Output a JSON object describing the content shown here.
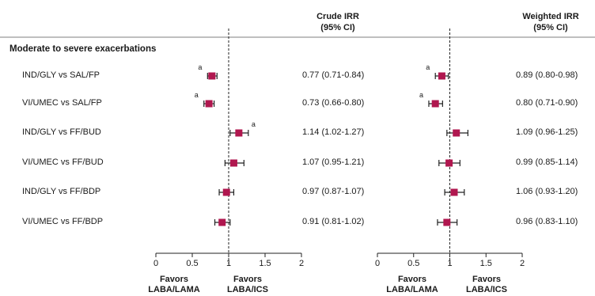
{
  "headers": {
    "crude": [
      "Crude IRR",
      "(95% CI)"
    ],
    "weighted": [
      "Weighted IRR",
      "(95% CI)"
    ]
  },
  "section_label": "Moderate to severe exacerbations",
  "favors": {
    "left": [
      "Favors",
      "LABA/LAMA"
    ],
    "right": [
      "Favors",
      "LABA/ICS"
    ]
  },
  "colors": {
    "marker": "#b0174f",
    "line": "#222222"
  },
  "chart_data": [
    {
      "type": "forest",
      "name": "crude",
      "xlim": [
        0,
        2
      ],
      "ticks": [
        "0",
        "0.5",
        "1",
        "1.5",
        "2"
      ],
      "tick_values": [
        0,
        0.5,
        1,
        1.5,
        2
      ],
      "reference_line": 1,
      "rows": [
        {
          "label": "IND/GLY vs SAL/FP",
          "est": 0.77,
          "lo": 0.71,
          "hi": 0.84,
          "text": "0.77 (0.71-0.84)",
          "note": "a"
        },
        {
          "label": "VI/UMEC vs SAL/FP",
          "est": 0.73,
          "lo": 0.66,
          "hi": 0.8,
          "text": "0.73 (0.66-0.80)",
          "note": "a"
        },
        {
          "label": "IND/GLY vs FF/BUD",
          "est": 1.14,
          "lo": 1.02,
          "hi": 1.27,
          "text": "1.14 (1.02-1.27)",
          "note": "a"
        },
        {
          "label": "VI/UMEC vs FF/BUD",
          "est": 1.07,
          "lo": 0.95,
          "hi": 1.21,
          "text": "1.07 (0.95-1.21)",
          "note": ""
        },
        {
          "label": "IND/GLY vs FF/BDP",
          "est": 0.97,
          "lo": 0.87,
          "hi": 1.07,
          "text": "0.97 (0.87-1.07)",
          "note": ""
        },
        {
          "label": "VI/UMEC vs FF/BDP",
          "est": 0.91,
          "lo": 0.81,
          "hi": 1.02,
          "text": "0.91 (0.81-1.02)",
          "note": ""
        }
      ]
    },
    {
      "type": "forest",
      "name": "weighted",
      "xlim": [
        0,
        2
      ],
      "ticks": [
        "0",
        "0.5",
        "1",
        "1.5",
        "2"
      ],
      "tick_values": [
        0,
        0.5,
        1,
        1.5,
        2
      ],
      "reference_line": 1,
      "rows": [
        {
          "est": 0.89,
          "lo": 0.8,
          "hi": 0.98,
          "text": "0.89 (0.80-0.98)",
          "note": "a"
        },
        {
          "est": 0.8,
          "lo": 0.71,
          "hi": 0.9,
          "text": "0.80 (0.71-0.90)",
          "note": "a"
        },
        {
          "est": 1.09,
          "lo": 0.96,
          "hi": 1.25,
          "text": "1.09 (0.96-1.25)",
          "note": ""
        },
        {
          "est": 0.99,
          "lo": 0.85,
          "hi": 1.14,
          "text": "0.99 (0.85-1.14)",
          "note": ""
        },
        {
          "est": 1.06,
          "lo": 0.93,
          "hi": 1.2,
          "text": "1.06 (0.93-1.20)",
          "note": ""
        },
        {
          "est": 0.96,
          "lo": 0.83,
          "hi": 1.1,
          "text": "0.96 (0.83-1.10)",
          "note": ""
        }
      ]
    }
  ]
}
